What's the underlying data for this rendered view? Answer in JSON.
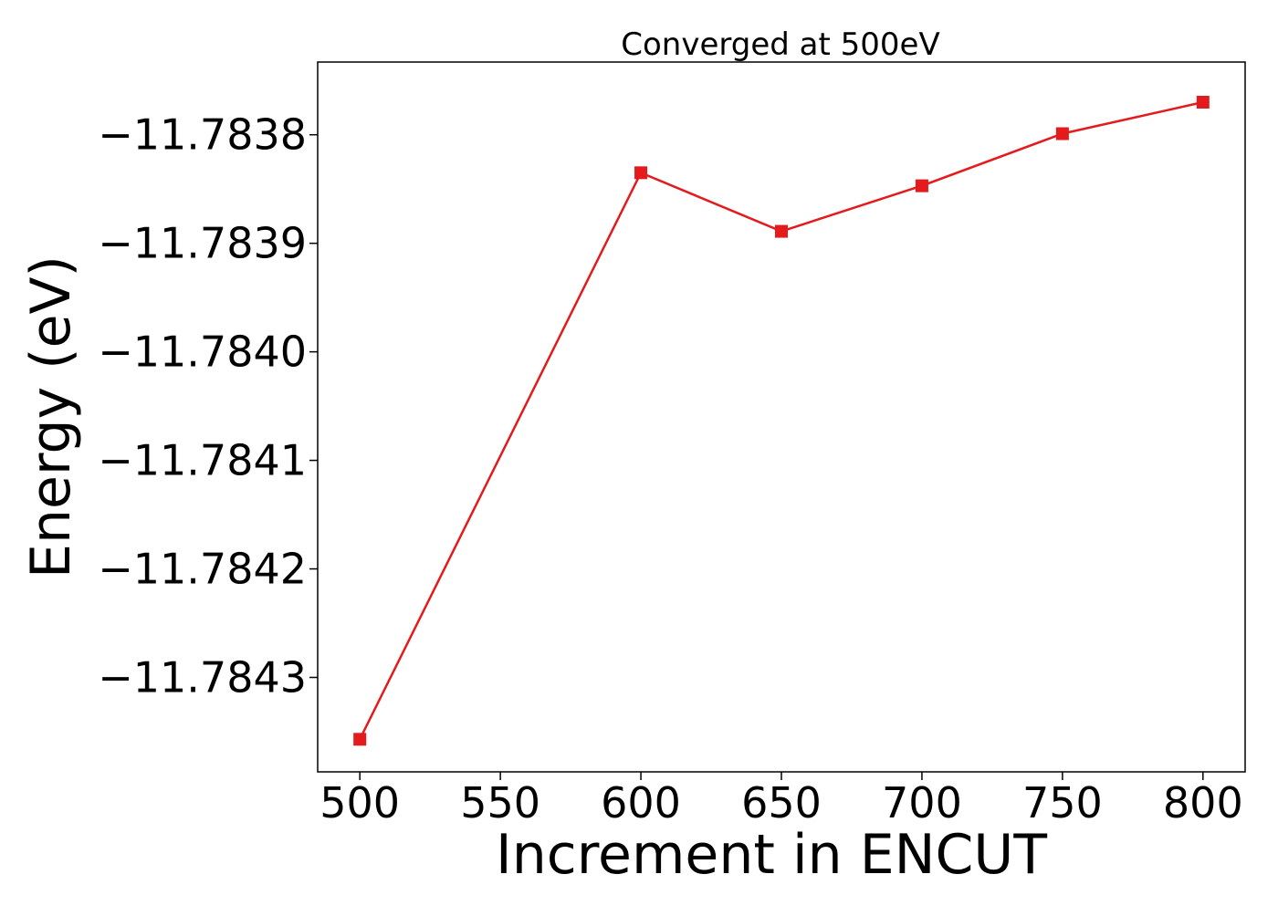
{
  "chart_data": {
    "type": "line",
    "title": "Converged at 500eV",
    "xlabel": "Increment in ENCUT",
    "ylabel": "Energy (eV)",
    "x": [
      500,
      600,
      650,
      700,
      750,
      800
    ],
    "series": [
      {
        "values": [
          -11.784357,
          -11.783835,
          -11.783889,
          -11.783847,
          -11.783799,
          -11.78377
        ],
        "color": "#e41a1c",
        "marker": "square"
      }
    ],
    "xlim": [
      485,
      815
    ],
    "ylim": [
      -11.784387,
      -11.783733
    ],
    "x_ticks": [
      500,
      550,
      600,
      650,
      700,
      750,
      800
    ],
    "x_tick_labels": [
      "500",
      "550",
      "600",
      "650",
      "700",
      "750",
      "800"
    ],
    "y_ticks": [
      -11.7838,
      -11.7839,
      -11.784,
      -11.7841,
      -11.7842,
      -11.7843
    ],
    "y_tick_labels": [
      "−11.7838",
      "−11.7839",
      "−11.7840",
      "−11.7841",
      "−11.7842",
      "−11.7843"
    ],
    "grid": false,
    "legend": "none"
  }
}
